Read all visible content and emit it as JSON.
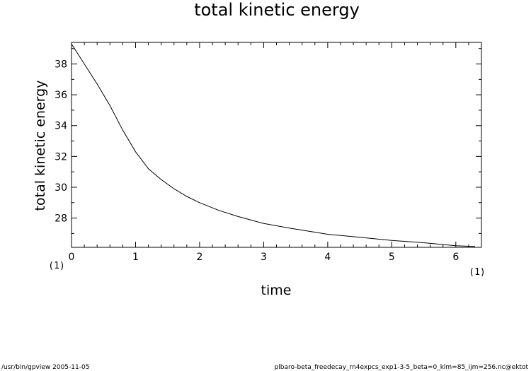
{
  "chart_data": {
    "type": "line",
    "title": "total kinetic energy",
    "xlabel": "time",
    "ylabel": "total kinetic energy",
    "xlim": [
      0,
      6.4
    ],
    "ylim": [
      26.1,
      39.4
    ],
    "x_ticks": [
      0,
      1,
      2,
      3,
      4,
      5,
      6
    ],
    "y_ticks": [
      28,
      30,
      32,
      34,
      36,
      38
    ],
    "x_unit": "(1)",
    "y_unit": "(1)",
    "grid": false,
    "series": [
      {
        "color": "#000000",
        "x": [
          0,
          0.2,
          0.4,
          0.6,
          0.8,
          1.0,
          1.2,
          1.4,
          1.6,
          1.8,
          2.0,
          2.3,
          2.6,
          3.0,
          3.4,
          4.0,
          4.5,
          5.0,
          5.5,
          6.0,
          6.3
        ],
        "y": [
          39.3,
          38.0,
          36.7,
          35.3,
          33.7,
          32.3,
          31.2,
          30.5,
          29.9,
          29.4,
          29.0,
          28.5,
          28.1,
          27.65,
          27.35,
          26.95,
          26.75,
          26.55,
          26.4,
          26.2,
          26.15
        ]
      }
    ]
  },
  "footer": {
    "left": "/usr/bin/gpview  2005-11-05",
    "right": "plbaro-beta_freedecay_rn4expcs_exp1-3-5_beta=0_klm=85_ijm=256.nc@ektot"
  }
}
